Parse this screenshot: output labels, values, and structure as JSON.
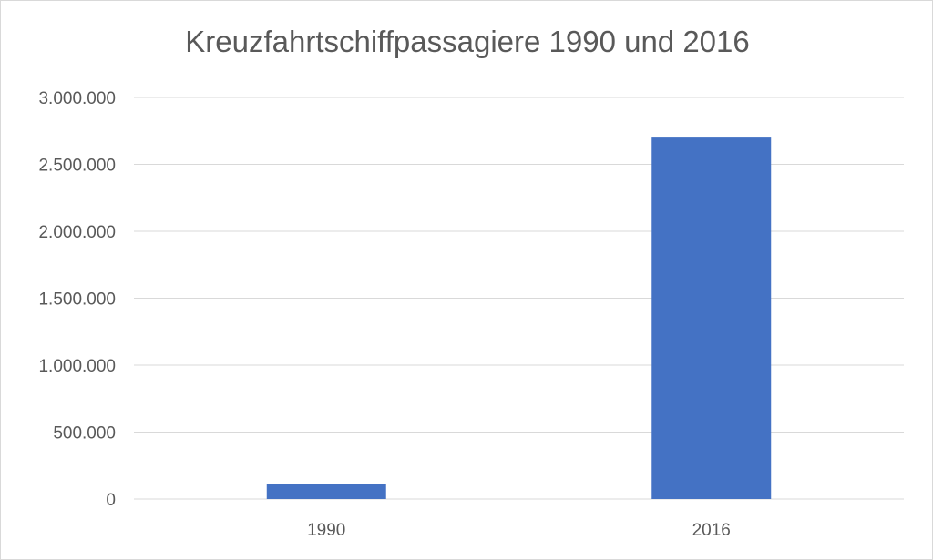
{
  "chart_data": {
    "type": "bar",
    "title": "Kreuzfahrtschiffpassagiere 1990 und 2016",
    "categories": [
      "1990",
      "2016"
    ],
    "values": [
      110000,
      2700000
    ],
    "xlabel": "",
    "ylabel": "",
    "ylim": [
      0,
      3000000
    ],
    "yticks": [
      0,
      500000,
      1000000,
      1500000,
      2000000,
      2500000,
      3000000
    ],
    "ytick_labels": [
      "0",
      "500.000",
      "1.000.000",
      "1.500.000",
      "2.000.000",
      "2.500.000",
      "3.000.000"
    ],
    "grid": true,
    "legend": "none",
    "colors": {
      "bar": "#4472c4",
      "grid": "#d9d9d9",
      "text": "#595959"
    }
  }
}
